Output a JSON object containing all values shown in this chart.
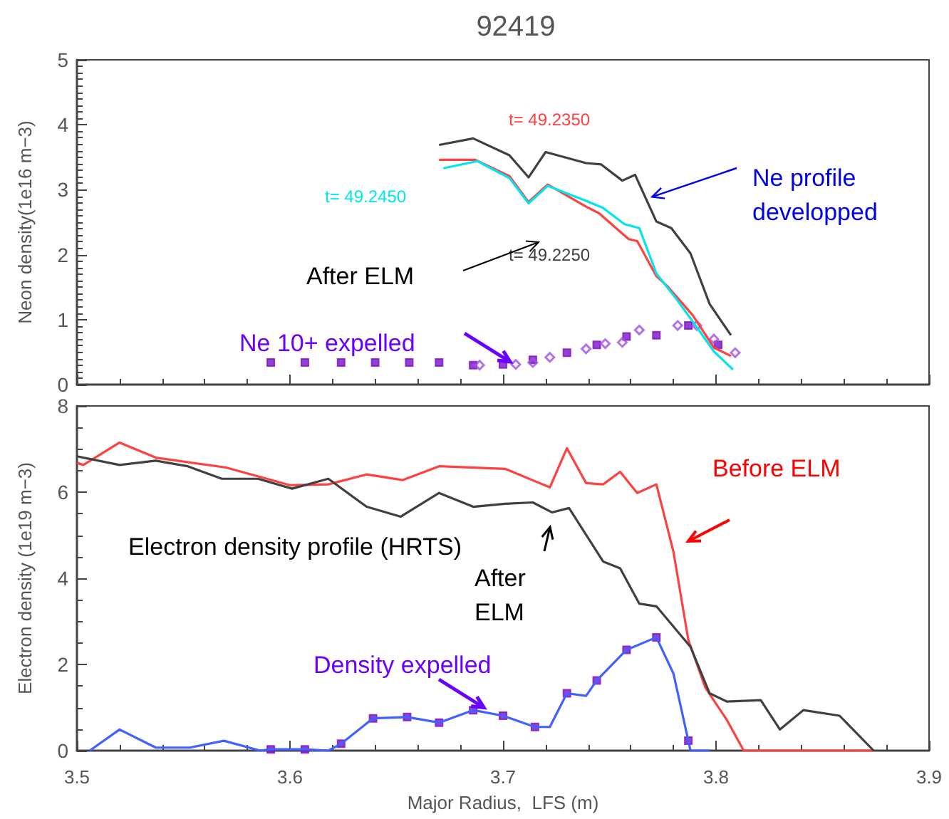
{
  "chart_data": [
    {
      "type": "line",
      "title": "92419",
      "ylabel": "Neon density(1e16 m−3)",
      "xlim": [
        3.5,
        3.9
      ],
      "xticks": [
        3.5,
        3.6,
        3.7,
        3.8,
        3.9
      ],
      "ylim": [
        0,
        5
      ],
      "yticks": [
        0,
        1,
        2,
        3,
        4,
        5
      ],
      "tick_labels": "y",
      "grid": false,
      "legend": false,
      "annotations": [
        "After ELM",
        "Ne 10+ expelled",
        {
          "text": "Ne profile developped",
          "x": 3.77,
          "y": 2.89
        }
      ],
      "series": [
        {
          "name": "t= 49.2350",
          "color": "#ff4040",
          "x": [
            3.67,
            3.687,
            3.703,
            3.712,
            3.721,
            3.739,
            3.745,
            3.759,
            3.763,
            3.772,
            3.777,
            3.789,
            3.799,
            3.807
          ],
          "values": [
            3.46,
            3.46,
            3.21,
            2.81,
            3.08,
            2.74,
            2.64,
            2.24,
            2.21,
            1.67,
            1.52,
            1.07,
            0.57,
            0.44
          ]
        },
        {
          "name": "t= 49.2450",
          "color": "#00e5ee",
          "x": [
            3.672,
            3.688,
            3.703,
            3.712,
            3.721,
            3.739,
            3.747,
            3.757,
            3.764,
            3.772,
            3.782,
            3.79,
            3.799,
            3.808
          ],
          "values": [
            3.33,
            3.44,
            3.18,
            2.79,
            3.06,
            2.83,
            2.72,
            2.47,
            2.41,
            1.71,
            1.29,
            0.93,
            0.51,
            0.23
          ]
        },
        {
          "name": "t= 49.2250",
          "color": "#404040",
          "x": [
            3.67,
            3.686,
            3.703,
            3.712,
            3.72,
            3.739,
            3.746,
            3.756,
            3.762,
            3.772,
            3.779,
            3.788,
            3.797,
            3.807
          ],
          "values": [
            3.69,
            3.79,
            3.53,
            3.19,
            3.58,
            3.41,
            3.39,
            3.14,
            3.23,
            2.51,
            2.41,
            2.02,
            1.24,
            0.76
          ]
        },
        {
          "type": "scatter",
          "marker": "square",
          "color": "#7a10c8",
          "x": [
            3.591,
            3.607,
            3.624,
            3.64,
            3.656,
            3.67,
            3.686,
            3.7,
            3.714,
            3.73,
            3.744,
            3.758,
            3.772,
            3.787,
            3.801
          ],
          "values": [
            0.34,
            0.34,
            0.34,
            0.34,
            0.34,
            0.34,
            0.3,
            0.31,
            0.38,
            0.49,
            0.61,
            0.74,
            0.76,
            0.91,
            0.61
          ]
        },
        {
          "type": "scatter",
          "marker": "diamond",
          "color": "#a050e0",
          "x": [
            3.689,
            3.706,
            3.714,
            3.722,
            3.739,
            3.748,
            3.756,
            3.764,
            3.782,
            3.791,
            3.799,
            3.809
          ],
          "values": [
            0.3,
            0.31,
            0.34,
            0.42,
            0.55,
            0.63,
            0.65,
            0.84,
            0.91,
            0.91,
            0.7,
            0.49
          ]
        }
      ]
    },
    {
      "type": "line",
      "xlabel": "Major Radius,  LFS (m)",
      "ylabel": "Electron density (1e19 m−3)",
      "xlim": [
        3.5,
        3.9
      ],
      "xticks": [
        3.5,
        3.6,
        3.7,
        3.8,
        3.9
      ],
      "ylim": [
        0,
        8
      ],
      "yticks": [
        0,
        2,
        4,
        6,
        8
      ],
      "grid": false,
      "legend": false,
      "annotations": [
        "Before ELM",
        "Electron density profile (HRTS)",
        "After ELM",
        {
          "text": "Density expelled",
          "x": 3.691,
          "y": 1.0
        }
      ],
      "series": [
        {
          "color": "#ff4040",
          "x": [
            3.5,
            3.503,
            3.52,
            3.537,
            3.57,
            3.6,
            3.618,
            3.636,
            3.653,
            3.67,
            3.701,
            3.722,
            3.73,
            3.739,
            3.747,
            3.755,
            3.763,
            3.772,
            3.78,
            3.787,
            3.795,
            3.805,
            3.813,
            3.874
          ],
          "values": [
            6.68,
            6.63,
            7.15,
            6.8,
            6.57,
            6.16,
            6.18,
            6.41,
            6.28,
            6.6,
            6.54,
            6.11,
            7.02,
            6.21,
            6.18,
            6.47,
            5.98,
            6.18,
            4.62,
            2.57,
            1.46,
            0.72,
            0,
            0
          ]
        },
        {
          "color": "#404040",
          "x": [
            3.5,
            3.52,
            3.537,
            3.552,
            3.568,
            3.585,
            3.601,
            3.618,
            3.636,
            3.652,
            3.67,
            3.686,
            3.701,
            3.714,
            3.723,
            3.731,
            3.747,
            3.755,
            3.764,
            3.772,
            3.788,
            3.797,
            3.805,
            3.821,
            3.83,
            3.841,
            3.858,
            3.874
          ],
          "values": [
            6.83,
            6.63,
            6.73,
            6.6,
            6.31,
            6.31,
            6.08,
            6.31,
            5.66,
            5.43,
            5.98,
            5.66,
            5.73,
            5.76,
            5.53,
            5.63,
            4.39,
            4.23,
            3.41,
            3.35,
            2.41,
            1.33,
            1.14,
            1.17,
            0.49,
            0.94,
            0.81,
            0
          ]
        },
        {
          "color": "#4060ff",
          "x": [
            3.506,
            3.52,
            3.537,
            3.553,
            3.569,
            3.586,
            3.591,
            3.607,
            3.618,
            3.624,
            3.639,
            3.655,
            3.67,
            3.686,
            3.7,
            3.715,
            3.722,
            3.73,
            3.739,
            3.744,
            3.758,
            3.772,
            3.78,
            3.787,
            3.788,
            3.797
          ],
          "values": [
            0,
            0.49,
            0.07,
            0.07,
            0.23,
            0,
            0.03,
            0.03,
            0,
            0.16,
            0.75,
            0.78,
            0.65,
            0.94,
            0.81,
            0.55,
            0.55,
            1.33,
            1.27,
            1.63,
            2.34,
            2.63,
            1.79,
            0.23,
            0,
            0
          ]
        },
        {
          "type": "scatter",
          "marker": "square",
          "color": "#7a10c8",
          "x": [
            3.591,
            3.607,
            3.624,
            3.639,
            3.655,
            3.67,
            3.686,
            3.7,
            3.715,
            3.73,
            3.744,
            3.758,
            3.772,
            3.787
          ],
          "values": [
            0.03,
            0.03,
            0.16,
            0.75,
            0.78,
            0.65,
            0.94,
            0.81,
            0.55,
            1.33,
            1.63,
            2.34,
            2.63,
            0.23
          ]
        }
      ]
    }
  ]
}
